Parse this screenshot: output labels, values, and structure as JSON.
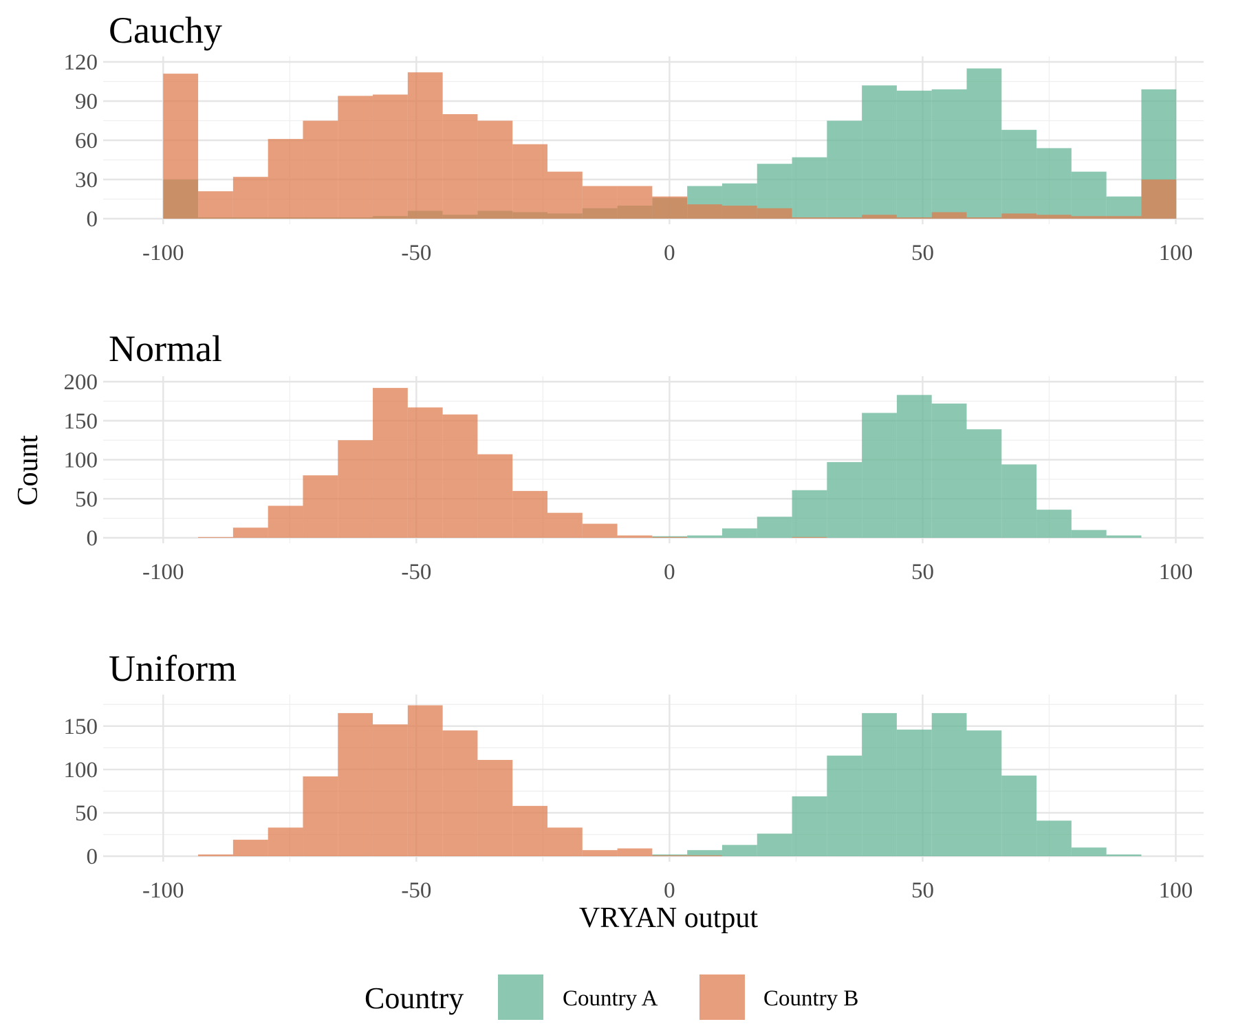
{
  "chart_data": {
    "type": "histogram",
    "xlabel": "VRYAN output",
    "ylabel": "Count",
    "legend": {
      "title": "Country",
      "position": "bottom",
      "entries": [
        {
          "name": "Country A",
          "color": "#66b697"
        },
        {
          "name": "Country B",
          "color": "#dd7e50"
        }
      ]
    },
    "grid": true,
    "bin_width": 6.9,
    "x_ticks": [
      -100,
      -50,
      0,
      50,
      100
    ],
    "x_tick_labels": [
      "-100",
      "-50",
      "0",
      "50",
      "100"
    ],
    "panels": [
      {
        "title": "Cauchy",
        "xlim": [
          -110.5,
          105.5
        ],
        "ylim": [
          0,
          120
        ],
        "y_ticks": [
          0,
          30,
          60,
          90,
          120
        ],
        "y_tick_labels": [
          "0",
          "30",
          "60",
          "90",
          "120"
        ],
        "series": [
          {
            "name": "Country A",
            "bins": [
              {
                "x0": -100.0,
                "x1": -93.1,
                "count": 30
              },
              {
                "x0": -93.1,
                "x1": -86.2,
                "count": 1
              },
              {
                "x0": -86.2,
                "x1": -79.3,
                "count": 1
              },
              {
                "x0": -79.3,
                "x1": -72.4,
                "count": 1
              },
              {
                "x0": -72.4,
                "x1": -65.5,
                "count": 1
              },
              {
                "x0": -65.5,
                "x1": -58.6,
                "count": 1
              },
              {
                "x0": -58.6,
                "x1": -51.7,
                "count": 2
              },
              {
                "x0": -51.7,
                "x1": -44.8,
                "count": 6
              },
              {
                "x0": -44.8,
                "x1": -37.9,
                "count": 3
              },
              {
                "x0": -37.9,
                "x1": -31.0,
                "count": 6
              },
              {
                "x0": -31.0,
                "x1": -24.1,
                "count": 5
              },
              {
                "x0": -24.1,
                "x1": -17.2,
                "count": 4
              },
              {
                "x0": -17.2,
                "x1": -10.3,
                "count": 8
              },
              {
                "x0": -10.3,
                "x1": -3.4,
                "count": 10
              },
              {
                "x0": -3.4,
                "x1": 3.5,
                "count": 16
              },
              {
                "x0": 3.5,
                "x1": 10.4,
                "count": 25
              },
              {
                "x0": 10.4,
                "x1": 17.3,
                "count": 27
              },
              {
                "x0": 17.3,
                "x1": 24.2,
                "count": 42
              },
              {
                "x0": 24.2,
                "x1": 31.1,
                "count": 47
              },
              {
                "x0": 31.1,
                "x1": 38.0,
                "count": 75
              },
              {
                "x0": 38.0,
                "x1": 44.9,
                "count": 102
              },
              {
                "x0": 44.9,
                "x1": 51.8,
                "count": 98
              },
              {
                "x0": 51.8,
                "x1": 58.7,
                "count": 99
              },
              {
                "x0": 58.7,
                "x1": 65.6,
                "count": 115
              },
              {
                "x0": 65.6,
                "x1": 72.5,
                "count": 68
              },
              {
                "x0": 72.5,
                "x1": 79.4,
                "count": 54
              },
              {
                "x0": 79.4,
                "x1": 86.3,
                "count": 36
              },
              {
                "x0": 86.3,
                "x1": 93.2,
                "count": 17
              },
              {
                "x0": 93.2,
                "x1": 100.1,
                "count": 99
              }
            ]
          },
          {
            "name": "Country B",
            "bins": [
              {
                "x0": -100.0,
                "x1": -93.1,
                "count": 111
              },
              {
                "x0": -93.1,
                "x1": -86.2,
                "count": 21
              },
              {
                "x0": -86.2,
                "x1": -79.3,
                "count": 32
              },
              {
                "x0": -79.3,
                "x1": -72.4,
                "count": 61
              },
              {
                "x0": -72.4,
                "x1": -65.5,
                "count": 75
              },
              {
                "x0": -65.5,
                "x1": -58.6,
                "count": 94
              },
              {
                "x0": -58.6,
                "x1": -51.7,
                "count": 95
              },
              {
                "x0": -51.7,
                "x1": -44.8,
                "count": 112
              },
              {
                "x0": -44.8,
                "x1": -37.9,
                "count": 80
              },
              {
                "x0": -37.9,
                "x1": -31.0,
                "count": 75
              },
              {
                "x0": -31.0,
                "x1": -24.1,
                "count": 57
              },
              {
                "x0": -24.1,
                "x1": -17.2,
                "count": 36
              },
              {
                "x0": -17.2,
                "x1": -10.3,
                "count": 25
              },
              {
                "x0": -10.3,
                "x1": -3.4,
                "count": 25
              },
              {
                "x0": -3.4,
                "x1": 3.5,
                "count": 17
              },
              {
                "x0": 3.5,
                "x1": 10.4,
                "count": 11
              },
              {
                "x0": 10.4,
                "x1": 17.3,
                "count": 10
              },
              {
                "x0": 17.3,
                "x1": 24.2,
                "count": 8
              },
              {
                "x0": 24.2,
                "x1": 31.1,
                "count": 1
              },
              {
                "x0": 31.1,
                "x1": 38.0,
                "count": 1
              },
              {
                "x0": 38.0,
                "x1": 44.9,
                "count": 3
              },
              {
                "x0": 44.9,
                "x1": 51.8,
                "count": 1
              },
              {
                "x0": 51.8,
                "x1": 58.7,
                "count": 5
              },
              {
                "x0": 58.7,
                "x1": 65.6,
                "count": 1
              },
              {
                "x0": 65.6,
                "x1": 72.5,
                "count": 4
              },
              {
                "x0": 72.5,
                "x1": 79.4,
                "count": 3
              },
              {
                "x0": 79.4,
                "x1": 86.3,
                "count": 2
              },
              {
                "x0": 86.3,
                "x1": 93.2,
                "count": 2
              },
              {
                "x0": 93.2,
                "x1": 100.1,
                "count": 30
              }
            ]
          }
        ]
      },
      {
        "title": "Normal",
        "xlim": [
          -110.5,
          105.5
        ],
        "ylim": [
          0,
          200
        ],
        "y_ticks": [
          0,
          50,
          100,
          150,
          200
        ],
        "y_tick_labels": [
          "0",
          "50",
          "100",
          "150",
          "200"
        ],
        "series": [
          {
            "name": "Country A",
            "bins": [
              {
                "x0": -3.4,
                "x1": 3.5,
                "count": 2
              },
              {
                "x0": 3.5,
                "x1": 10.4,
                "count": 3
              },
              {
                "x0": 10.4,
                "x1": 17.3,
                "count": 12
              },
              {
                "x0": 17.3,
                "x1": 24.2,
                "count": 27
              },
              {
                "x0": 24.2,
                "x1": 31.1,
                "count": 61
              },
              {
                "x0": 31.1,
                "x1": 38.0,
                "count": 97
              },
              {
                "x0": 38.0,
                "x1": 44.9,
                "count": 160
              },
              {
                "x0": 44.9,
                "x1": 51.8,
                "count": 183
              },
              {
                "x0": 51.8,
                "x1": 58.7,
                "count": 172
              },
              {
                "x0": 58.7,
                "x1": 65.6,
                "count": 139
              },
              {
                "x0": 65.6,
                "x1": 72.5,
                "count": 94
              },
              {
                "x0": 72.5,
                "x1": 79.4,
                "count": 36
              },
              {
                "x0": 79.4,
                "x1": 86.3,
                "count": 10
              },
              {
                "x0": 86.3,
                "x1": 93.2,
                "count": 3
              }
            ]
          },
          {
            "name": "Country B",
            "bins": [
              {
                "x0": -93.1,
                "x1": -86.2,
                "count": 1
              },
              {
                "x0": -86.2,
                "x1": -79.3,
                "count": 13
              },
              {
                "x0": -79.3,
                "x1": -72.4,
                "count": 41
              },
              {
                "x0": -72.4,
                "x1": -65.5,
                "count": 80
              },
              {
                "x0": -65.5,
                "x1": -58.6,
                "count": 125
              },
              {
                "x0": -58.6,
                "x1": -51.7,
                "count": 192
              },
              {
                "x0": -51.7,
                "x1": -44.8,
                "count": 167
              },
              {
                "x0": -44.8,
                "x1": -37.9,
                "count": 158
              },
              {
                "x0": -37.9,
                "x1": -31.0,
                "count": 107
              },
              {
                "x0": -31.0,
                "x1": -24.1,
                "count": 60
              },
              {
                "x0": -24.1,
                "x1": -17.2,
                "count": 32
              },
              {
                "x0": -17.2,
                "x1": -10.3,
                "count": 18
              },
              {
                "x0": -10.3,
                "x1": -3.4,
                "count": 3
              },
              {
                "x0": -3.4,
                "x1": 3.5,
                "count": 1
              },
              {
                "x0": 24.2,
                "x1": 31.1,
                "count": 1
              }
            ]
          }
        ]
      },
      {
        "title": "Uniform",
        "xlim": [
          -110.5,
          105.5
        ],
        "ylim": [
          0,
          180
        ],
        "y_ticks": [
          0,
          50,
          100,
          150
        ],
        "y_tick_labels": [
          "0",
          "50",
          "100",
          "150"
        ],
        "series": [
          {
            "name": "Country A",
            "bins": [
              {
                "x0": -3.4,
                "x1": 3.5,
                "count": 2
              },
              {
                "x0": 3.5,
                "x1": 10.4,
                "count": 7
              },
              {
                "x0": 10.4,
                "x1": 17.3,
                "count": 13
              },
              {
                "x0": 17.3,
                "x1": 24.2,
                "count": 26
              },
              {
                "x0": 24.2,
                "x1": 31.1,
                "count": 69
              },
              {
                "x0": 31.1,
                "x1": 38.0,
                "count": 116
              },
              {
                "x0": 38.0,
                "x1": 44.9,
                "count": 165
              },
              {
                "x0": 44.9,
                "x1": 51.8,
                "count": 146
              },
              {
                "x0": 51.8,
                "x1": 58.7,
                "count": 165
              },
              {
                "x0": 58.7,
                "x1": 65.6,
                "count": 145
              },
              {
                "x0": 65.6,
                "x1": 72.5,
                "count": 93
              },
              {
                "x0": 72.5,
                "x1": 79.4,
                "count": 41
              },
              {
                "x0": 79.4,
                "x1": 86.3,
                "count": 10
              },
              {
                "x0": 86.3,
                "x1": 93.2,
                "count": 2
              }
            ]
          },
          {
            "name": "Country B",
            "bins": [
              {
                "x0": -93.1,
                "x1": -86.2,
                "count": 2
              },
              {
                "x0": -86.2,
                "x1": -79.3,
                "count": 19
              },
              {
                "x0": -79.3,
                "x1": -72.4,
                "count": 33
              },
              {
                "x0": -72.4,
                "x1": -65.5,
                "count": 92
              },
              {
                "x0": -65.5,
                "x1": -58.6,
                "count": 165
              },
              {
                "x0": -58.6,
                "x1": -51.7,
                "count": 152
              },
              {
                "x0": -51.7,
                "x1": -44.8,
                "count": 174
              },
              {
                "x0": -44.8,
                "x1": -37.9,
                "count": 145
              },
              {
                "x0": -37.9,
                "x1": -31.0,
                "count": 111
              },
              {
                "x0": -31.0,
                "x1": -24.1,
                "count": 58
              },
              {
                "x0": -24.1,
                "x1": -17.2,
                "count": 33
              },
              {
                "x0": -17.2,
                "x1": -10.3,
                "count": 7
              },
              {
                "x0": -10.3,
                "x1": -3.4,
                "count": 9
              },
              {
                "x0": -3.4,
                "x1": 3.5,
                "count": 1
              },
              {
                "x0": 3.5,
                "x1": 10.4,
                "count": 1
              }
            ]
          }
        ]
      }
    ]
  }
}
